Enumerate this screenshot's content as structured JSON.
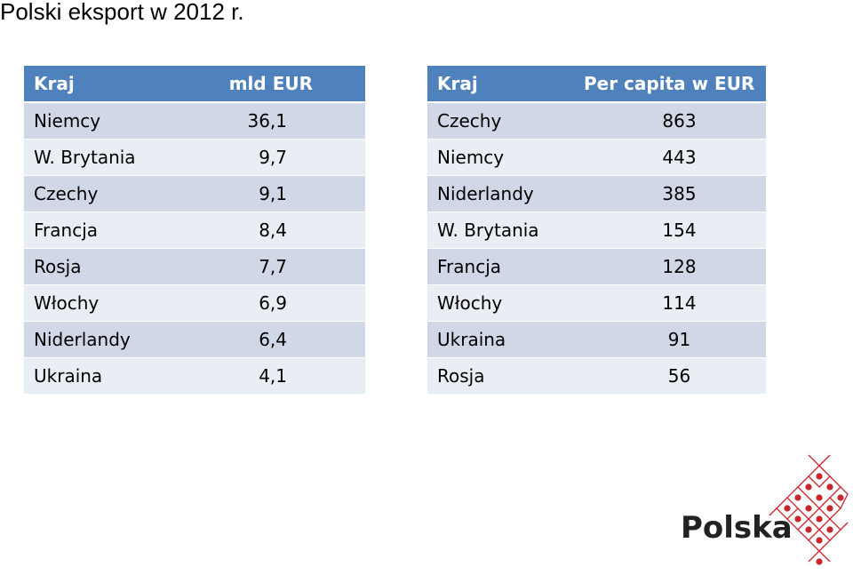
{
  "title": "Polski eksport w 2012 r.",
  "table_total": {
    "headers": [
      "Kraj",
      "mld EUR"
    ],
    "rows": [
      [
        "Niemcy",
        "36,1"
      ],
      [
        "W. Brytania",
        "9,7"
      ],
      [
        "Czechy",
        "9,1"
      ],
      [
        "Francja",
        "8,4"
      ],
      [
        "Rosja",
        "7,7"
      ],
      [
        "Włochy",
        "6,9"
      ],
      [
        "Niderlandy",
        "6,4"
      ],
      [
        "Ukraina",
        "4,1"
      ]
    ]
  },
  "table_per_capita": {
    "headers": [
      "Kraj",
      "Per capita w EUR"
    ],
    "rows": [
      [
        "Czechy",
        "863"
      ],
      [
        "Niemcy",
        "443"
      ],
      [
        "Niderlandy",
        "385"
      ],
      [
        "W. Brytania",
        "154"
      ],
      [
        "Francja",
        "128"
      ],
      [
        "Włochy",
        "114"
      ],
      [
        "Ukraina",
        "91"
      ],
      [
        "Rosja",
        "56"
      ]
    ]
  },
  "logo": {
    "text": "Polska",
    "icon": "polska-mosaic-icon",
    "colors": {
      "line": "#c8262c",
      "dot": "#c8262c",
      "text": "#222222"
    }
  },
  "colors": {
    "header_bg": "#4f81bd",
    "row_dark": "#d0d8e8",
    "row_light": "#e9edf4"
  }
}
